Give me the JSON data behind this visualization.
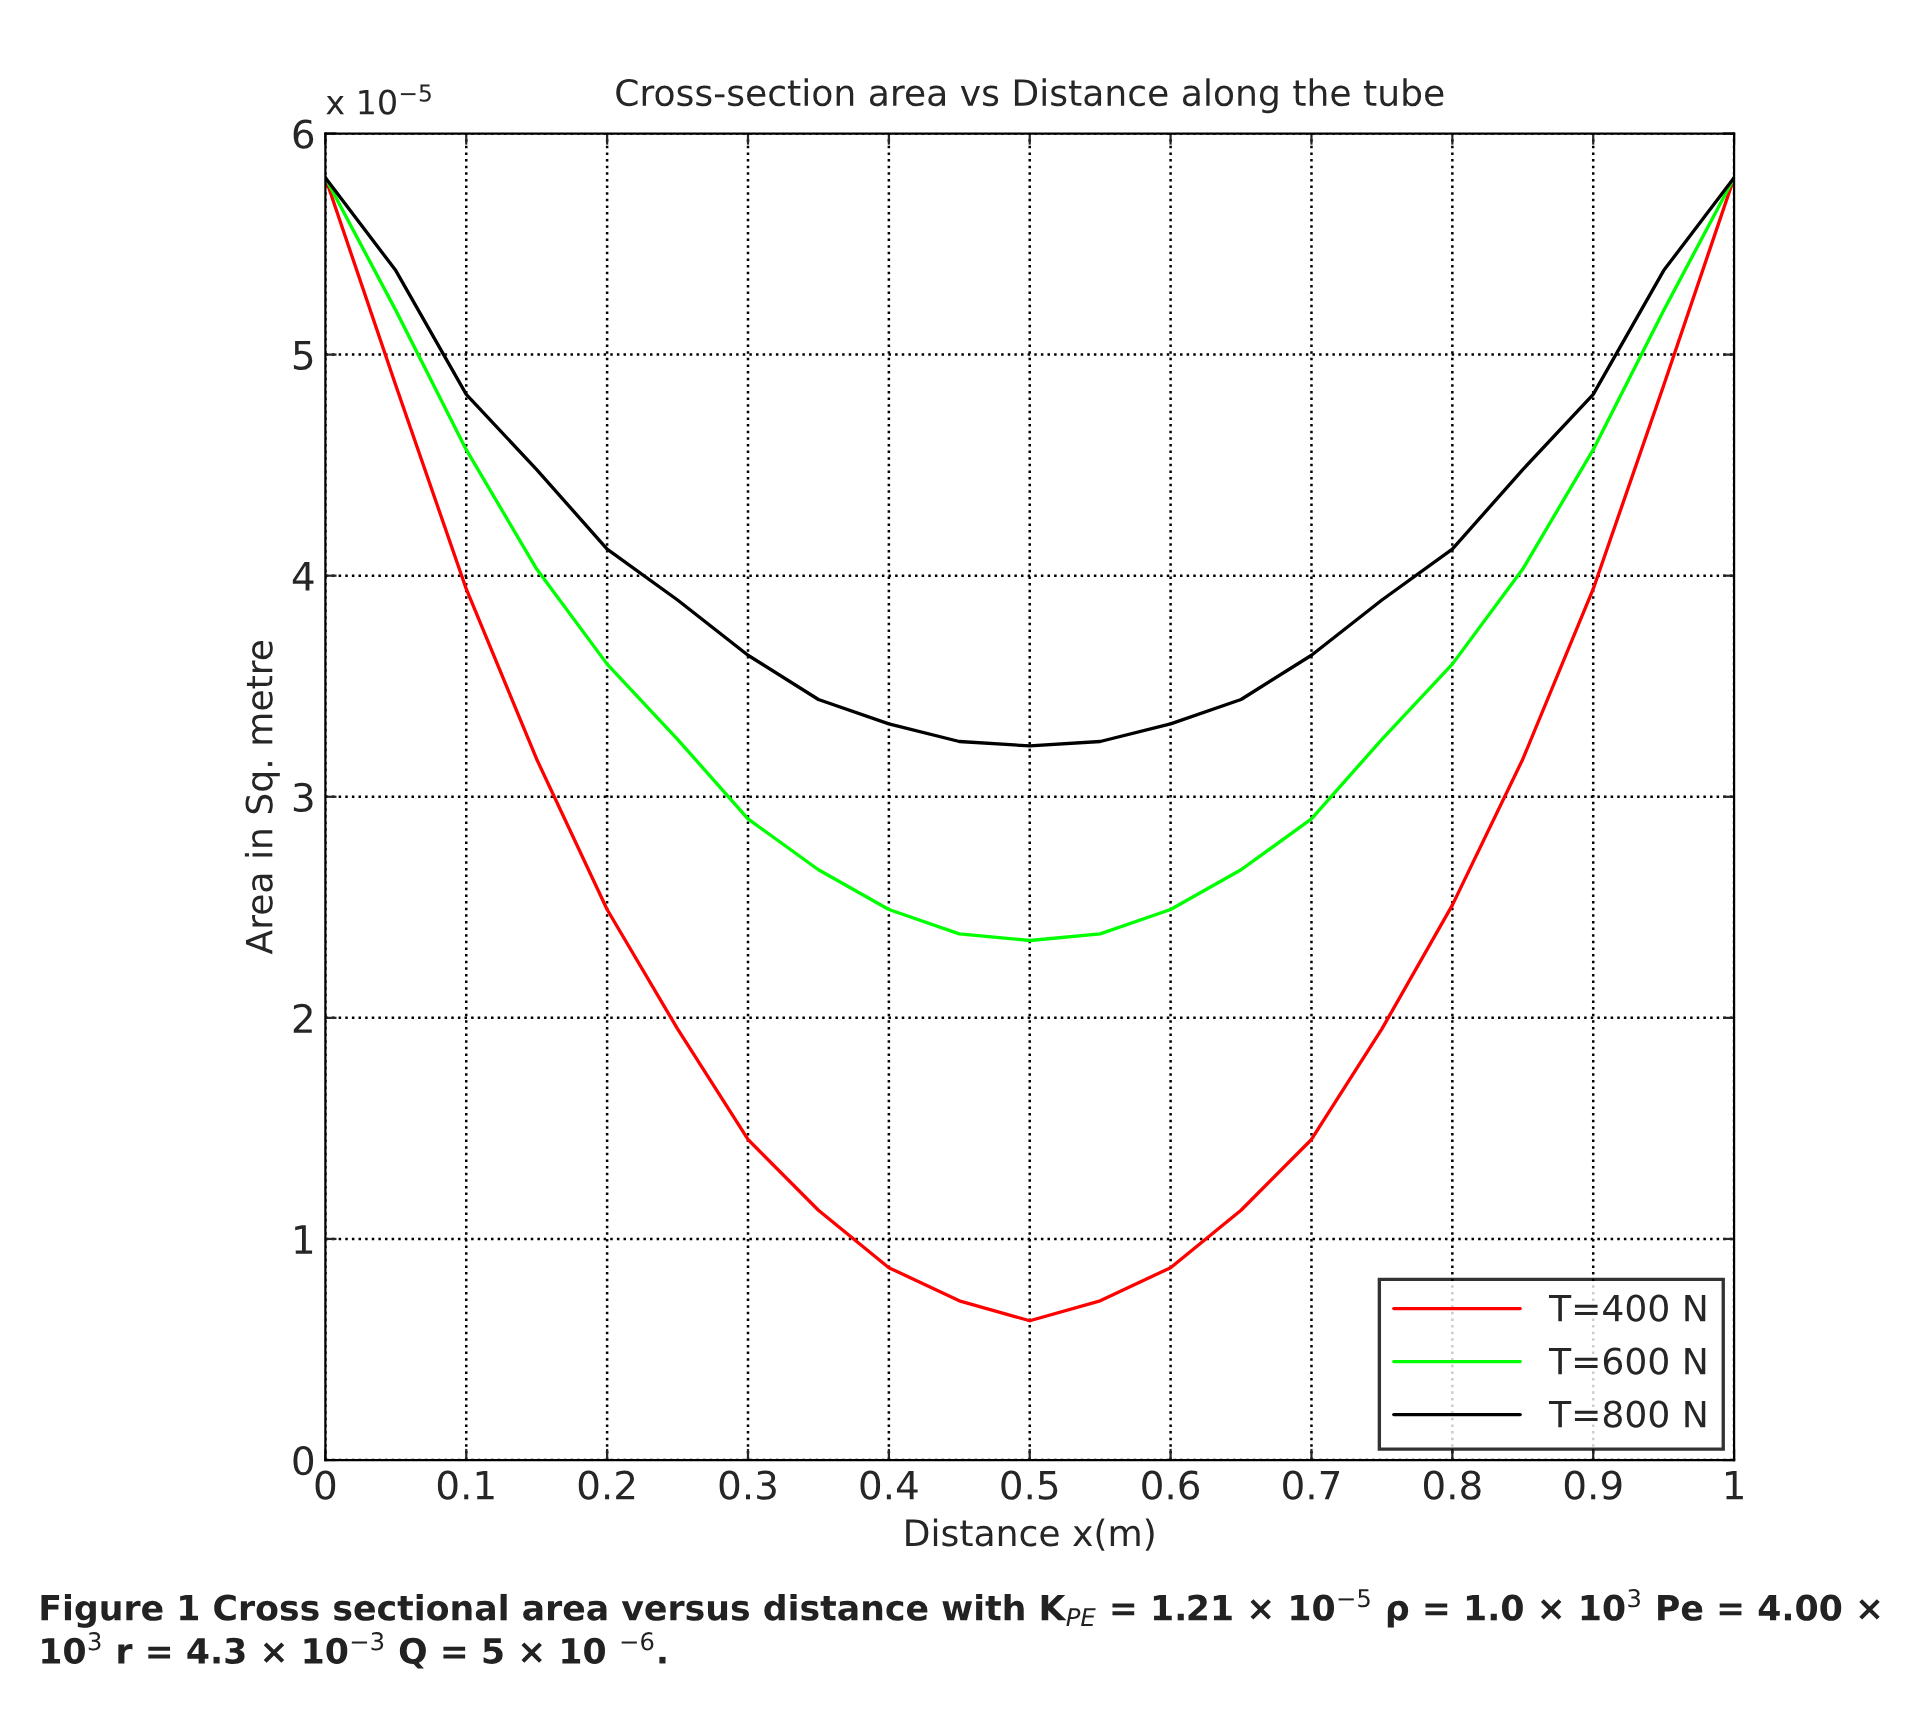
{
  "chart_data": {
    "type": "line",
    "title": "Cross-section area vs Distance along the tube",
    "xlabel": "Distance x(m)",
    "ylabel": "Area in Sq. metre",
    "x": [
      0,
      0.05,
      0.1,
      0.15,
      0.2,
      0.25,
      0.3,
      0.35,
      0.4,
      0.45,
      0.5,
      0.55,
      0.6,
      0.65,
      0.7,
      0.75,
      0.8,
      0.85,
      0.9,
      0.95,
      1
    ],
    "series": [
      {
        "name": "T=400 N",
        "color": "#ff0000",
        "values": [
          5.8,
          4.86,
          3.94,
          3.17,
          2.49,
          1.95,
          1.45,
          1.13,
          0.87,
          0.72,
          0.63,
          0.72,
          0.87,
          1.13,
          1.45,
          1.95,
          2.51,
          3.17,
          3.94,
          4.86,
          5.8
        ]
      },
      {
        "name": "T=600 N",
        "color": "#00ff00",
        "values": [
          5.8,
          5.2,
          4.57,
          4.03,
          3.6,
          3.26,
          2.9,
          2.67,
          2.49,
          2.38,
          2.35,
          2.38,
          2.49,
          2.67,
          2.9,
          3.26,
          3.6,
          4.03,
          4.57,
          5.2,
          5.8
        ]
      },
      {
        "name": "T=800 N",
        "color": "#000000",
        "values": [
          5.8,
          5.38,
          4.82,
          4.48,
          4.12,
          3.89,
          3.64,
          3.44,
          3.33,
          3.25,
          3.23,
          3.25,
          3.33,
          3.44,
          3.64,
          3.89,
          4.12,
          4.48,
          4.82,
          5.38,
          5.8
        ]
      }
    ],
    "xlim": [
      0,
      1
    ],
    "xticks": [
      0,
      0.1,
      0.2,
      0.3,
      0.4,
      0.5,
      0.6,
      0.7,
      0.8,
      0.9,
      1
    ],
    "ylim": [
      0,
      6
    ],
    "yticks": [
      0,
      1,
      2,
      3,
      4,
      5,
      6
    ],
    "grid": true,
    "line_style": "solid",
    "legend": "bottom right",
    "annotations": [
      "x 10$^{−5}$",
      "Figure 1 Cross sectional area versus distance with K$_{PE}$ = 1.21 × 10$^{−5}$ ρ = 1.0 × 10$^{3}$ Pe = 4.00 × 10$^{3}$ r = 4.3 × 10$^{−3}$ Q = 5 × 10 $^{−6}$."
    ]
  }
}
